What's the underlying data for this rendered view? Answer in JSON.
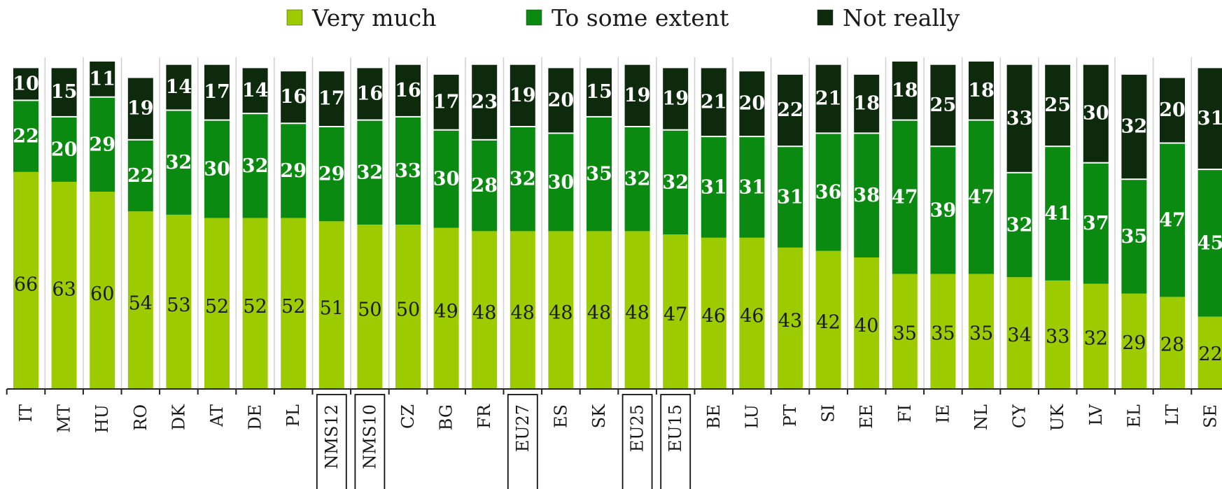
{
  "chart_data": {
    "type": "bar",
    "stacked": true,
    "categories": [
      "IT",
      "MT",
      "HU",
      "RO",
      "DK",
      "AT",
      "DE",
      "PL",
      "NMS12",
      "NMS10",
      "CZ",
      "BG",
      "FR",
      "EU27",
      "ES",
      "SK",
      "EU25",
      "EU15",
      "BE",
      "LU",
      "PT",
      "SI",
      "EE",
      "FI",
      "IE",
      "NL",
      "CY",
      "UK",
      "LV",
      "EL",
      "LT",
      "SE"
    ],
    "boxed_categories": [
      "NMS12",
      "NMS10",
      "EU27",
      "EU25",
      "EU15"
    ],
    "series": [
      {
        "name": "Very much",
        "color": "#9ccb00",
        "values": [
          66,
          63,
          60,
          54,
          53,
          52,
          52,
          52,
          51,
          50,
          50,
          49,
          48,
          48,
          48,
          48,
          48,
          47,
          46,
          46,
          43,
          42,
          40,
          35,
          35,
          35,
          34,
          33,
          32,
          29,
          28,
          22
        ]
      },
      {
        "name": "To some extent",
        "color": "#0a8a10",
        "values": [
          22,
          20,
          29,
          22,
          32,
          30,
          32,
          29,
          29,
          32,
          33,
          30,
          28,
          32,
          30,
          35,
          32,
          32,
          31,
          31,
          31,
          36,
          38,
          47,
          39,
          47,
          32,
          41,
          37,
          35,
          47,
          45
        ]
      },
      {
        "name": "Not really",
        "color": "#0e2a0c",
        "values": [
          10,
          15,
          11,
          19,
          14,
          17,
          14,
          16,
          17,
          16,
          16,
          17,
          23,
          19,
          20,
          15,
          19,
          19,
          21,
          20,
          22,
          21,
          18,
          18,
          25,
          18,
          33,
          25,
          30,
          32,
          20,
          31
        ]
      }
    ],
    "legend_position": "top",
    "grid": false,
    "ylim": [
      0,
      100
    ]
  }
}
